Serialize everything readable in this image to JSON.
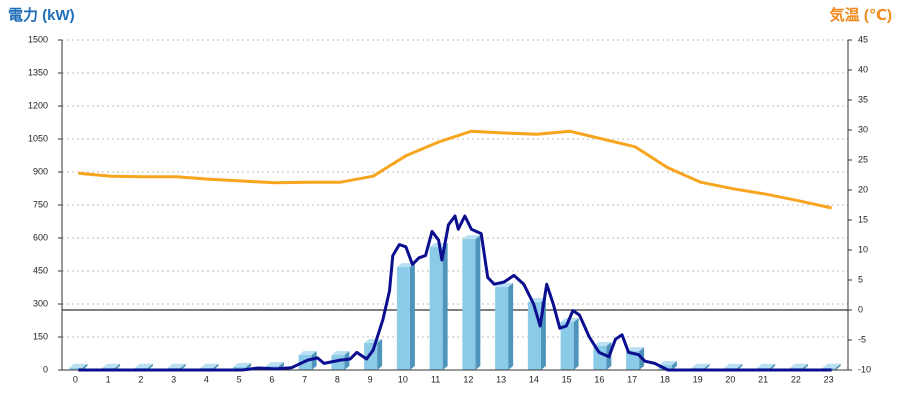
{
  "chart_data": {
    "type": "combo",
    "y_title": "電力 (kW)",
    "y2_title": "気温 (℃)",
    "y_title_color": "#1f6fb8",
    "y2_title_color": "#f08a1c",
    "categories": [
      "0",
      "1",
      "2",
      "3",
      "4",
      "5",
      "6",
      "7",
      "8",
      "9",
      "10",
      "11",
      "12",
      "13",
      "14",
      "15",
      "16",
      "17",
      "18",
      "19",
      "20",
      "21",
      "22",
      "23"
    ],
    "ylim": [
      0,
      1500
    ],
    "yticks": [
      0,
      150,
      300,
      450,
      600,
      750,
      900,
      1050,
      1200,
      1350,
      1500
    ],
    "y2lim": [
      -10,
      45
    ],
    "y2ticks": [
      -10,
      -5,
      0,
      5,
      10,
      15,
      20,
      25,
      30,
      35,
      40,
      45
    ],
    "grid": true,
    "bars": {
      "color": "#8ccbe8",
      "side_color": "#4f94ba",
      "top_color": "#b9e1f3",
      "values": [
        10,
        10,
        10,
        10,
        10,
        14,
        18,
        68,
        68,
        123,
        468,
        559,
        595,
        377,
        309,
        218,
        109,
        86,
        23,
        10,
        10,
        10,
        10,
        10
      ]
    },
    "power_line": {
      "color": "#0b0f8f",
      "x": [
        0,
        1,
        2,
        3,
        4,
        5,
        5.5,
        6,
        6.5,
        7,
        7.3,
        7.5,
        8,
        8.3,
        8.5,
        8.8,
        9,
        9.3,
        9.5,
        9.6,
        9.8,
        10,
        10.2,
        10.4,
        10.6,
        10.8,
        11,
        11.1,
        11.3,
        11.5,
        11.6,
        11.8,
        12,
        12.3,
        12.5,
        12.7,
        13,
        13.3,
        13.6,
        13.9,
        14.1,
        14.3,
        14.5,
        14.7,
        14.9,
        15.1,
        15.3,
        15.6,
        15.9,
        16.2,
        16.4,
        16.6,
        16.8,
        17.1,
        17.3,
        17.6,
        18,
        19,
        20,
        21,
        22,
        23
      ],
      "values": [
        0,
        0,
        0,
        0,
        0,
        0,
        9,
        5,
        10,
        45,
        55,
        30,
        45,
        50,
        80,
        50,
        90,
        230,
        360,
        520,
        570,
        560,
        480,
        510,
        520,
        630,
        590,
        500,
        660,
        700,
        640,
        700,
        640,
        620,
        420,
        390,
        400,
        430,
        390,
        300,
        200,
        390,
        300,
        190,
        200,
        270,
        250,
        150,
        80,
        60,
        140,
        160,
        80,
        70,
        40,
        30,
        0,
        0,
        0,
        0,
        0,
        0
      ]
    },
    "temperature": {
      "color": "#f7a51f",
      "axis": "y2",
      "values": [
        22.8,
        22.3,
        22.2,
        22.2,
        21.8,
        21.5,
        21.2,
        21.3,
        21.3,
        22.3,
        25.7,
        28,
        29.8,
        29.5,
        29.3,
        29.8,
        28.5,
        27.2,
        23.7,
        21.3,
        20.2,
        19.3,
        18.2,
        17
      ]
    }
  }
}
